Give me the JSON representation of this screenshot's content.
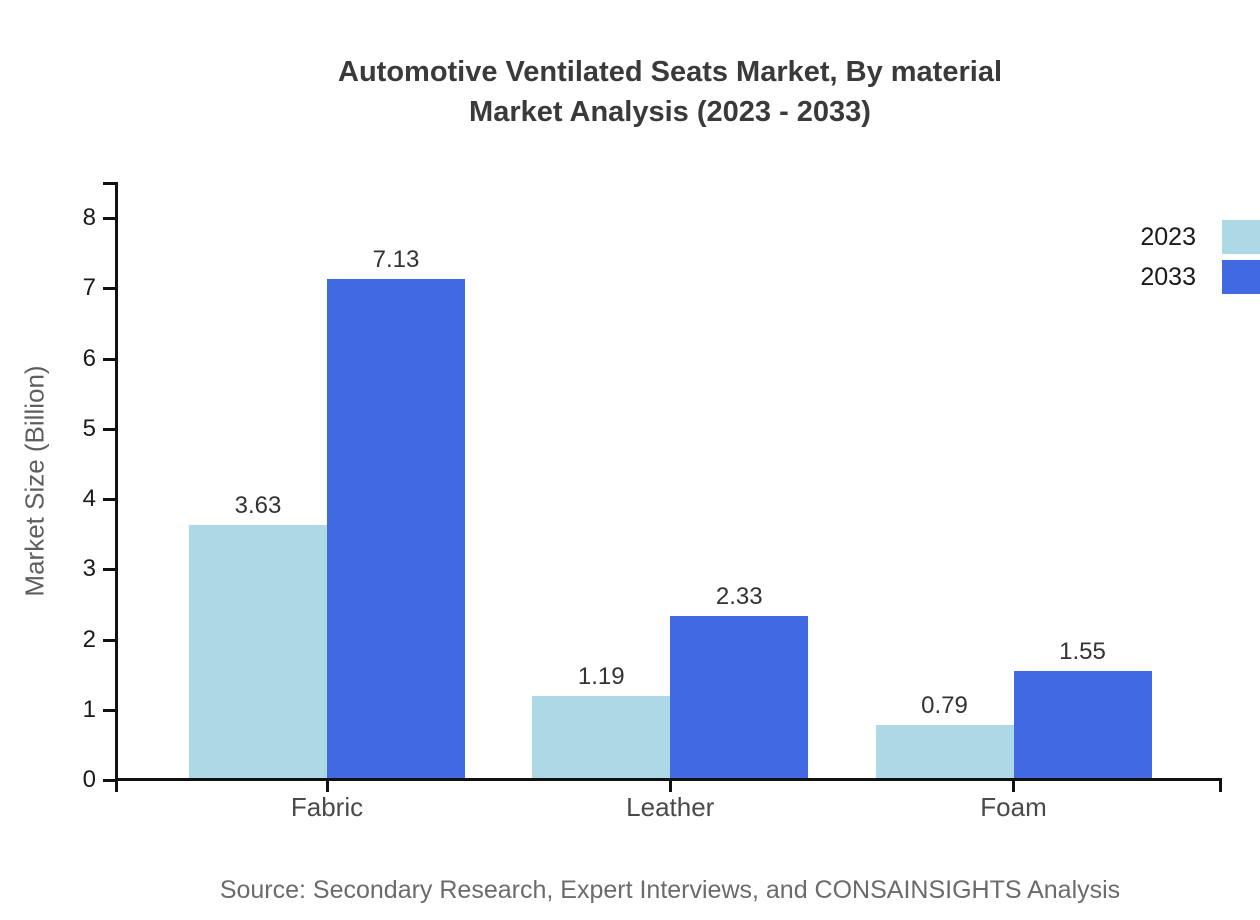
{
  "title": {
    "line1": "Automotive Ventilated Seats Market, By material",
    "line2": "Market Analysis (2023 - 2033)"
  },
  "source_note": "Source: Secondary Research, Expert Interviews, and CONSAINSIGHTS Analysis",
  "chart_data": {
    "type": "bar",
    "title": "Automotive Ventilated Seats Market, By material Market Analysis (2023 - 2033)",
    "categories": [
      "Fabric",
      "Leather",
      "Foam"
    ],
    "series": [
      {
        "name": "2023",
        "color": "#ADD8E6",
        "values": [
          3.63,
          1.19,
          0.79
        ]
      },
      {
        "name": "2033",
        "color": "#4169E1",
        "values": [
          7.13,
          2.33,
          1.55
        ]
      }
    ],
    "xlabel": "",
    "ylabel": "Market Size (Billion)",
    "ylim": [
      0,
      8.55
    ],
    "yticks": [
      0,
      1,
      2,
      3,
      4,
      5,
      6,
      7,
      8
    ],
    "grid": false,
    "legend_position": "top-right",
    "bar_value_labels": true
  },
  "colors": {
    "axis": "#111111",
    "tick_label": "#1a1a1a",
    "category_label": "#4a4a4a",
    "value_label": "#333333",
    "title": "#3a3a3a",
    "source": "#6b6b6b",
    "ylabel": "#5e5e5e",
    "background": "#ffffff"
  }
}
